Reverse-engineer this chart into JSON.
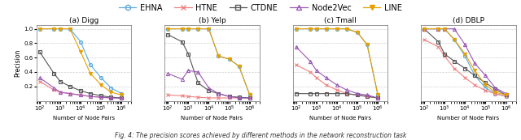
{
  "legend": {
    "EHNA": {
      "color": "#5aabdb",
      "marker": "o",
      "linestyle": "-",
      "mfc": "none"
    },
    "HTNE": {
      "color": "#f08080",
      "marker": "x",
      "linestyle": "-",
      "mfc": "auto"
    },
    "CTDNE": {
      "color": "#555555",
      "marker": "s",
      "linestyle": "-",
      "mfc": "none"
    },
    "Node2Vec": {
      "color": "#9b59b6",
      "marker": "^",
      "linestyle": "-",
      "mfc": "none"
    },
    "LINE": {
      "color": "#e8a000",
      "marker": "v",
      "linestyle": "-",
      "mfc": "auto"
    }
  },
  "methods": [
    "EHNA",
    "HTNE",
    "CTDNE",
    "Node2Vec",
    "LINE"
  ],
  "subplots": [
    {
      "title": "(a) Digg",
      "x": [
        100,
        500,
        1000,
        3000,
        10000,
        30000,
        100000,
        300000,
        1000000
      ],
      "EHNA": [
        1.0,
        1.0,
        1.0,
        1.0,
        0.82,
        0.5,
        0.32,
        0.18,
        0.1
      ],
      "HTNE": [
        0.27,
        0.15,
        0.12,
        0.1,
        0.08,
        0.06,
        0.05,
        0.04,
        0.04
      ],
      "CTDNE": [
        0.68,
        0.38,
        0.27,
        0.2,
        0.14,
        0.1,
        0.07,
        0.05,
        0.04
      ],
      "Node2Vec": [
        0.32,
        0.18,
        0.12,
        0.1,
        0.08,
        0.06,
        0.05,
        0.04,
        0.04
      ],
      "LINE": [
        1.0,
        1.0,
        1.0,
        1.0,
        0.68,
        0.38,
        0.22,
        0.12,
        0.08
      ]
    },
    {
      "title": "(b) Yelp",
      "x": [
        100,
        500,
        1000,
        3000,
        10000,
        30000,
        100000,
        300000,
        1000000
      ],
      "EHNA": [
        1.0,
        1.0,
        1.0,
        1.0,
        1.0,
        0.62,
        0.58,
        0.48,
        0.08
      ],
      "HTNE": [
        0.08,
        0.07,
        0.06,
        0.05,
        0.04,
        0.04,
        0.04,
        0.04,
        0.04
      ],
      "CTDNE": [
        0.92,
        0.82,
        0.65,
        0.25,
        0.14,
        0.1,
        0.06,
        0.05,
        0.04
      ],
      "Node2Vec": [
        0.38,
        0.3,
        0.42,
        0.4,
        0.18,
        0.1,
        0.06,
        0.04,
        0.04
      ],
      "LINE": [
        1.0,
        1.0,
        1.0,
        1.0,
        1.0,
        0.62,
        0.58,
        0.48,
        0.08
      ]
    },
    {
      "title": "(c) Tmall",
      "x": [
        100,
        500,
        1000,
        3000,
        10000,
        30000,
        100000,
        300000,
        1000000
      ],
      "EHNA": [
        1.0,
        1.0,
        1.0,
        1.0,
        1.0,
        1.0,
        0.95,
        0.78,
        0.08
      ],
      "HTNE": [
        0.5,
        0.4,
        0.32,
        0.22,
        0.15,
        0.1,
        0.08,
        0.06,
        0.04
      ],
      "CTDNE": [
        0.1,
        0.1,
        0.1,
        0.1,
        0.1,
        0.1,
        0.08,
        0.06,
        0.04
      ],
      "Node2Vec": [
        0.75,
        0.55,
        0.42,
        0.32,
        0.22,
        0.15,
        0.1,
        0.08,
        0.04
      ],
      "LINE": [
        1.0,
        1.0,
        1.0,
        1.0,
        1.0,
        1.0,
        0.95,
        0.78,
        0.08
      ]
    },
    {
      "title": "(d) DBLP",
      "x": [
        100,
        500,
        1000,
        3000,
        10000,
        30000,
        100000,
        300000,
        1000000
      ],
      "EHNA": [
        1.0,
        1.0,
        1.0,
        0.85,
        0.62,
        0.35,
        0.18,
        0.1,
        0.06
      ],
      "HTNE": [
        0.85,
        0.75,
        0.62,
        0.45,
        0.32,
        0.22,
        0.14,
        0.1,
        0.06
      ],
      "CTDNE": [
        1.0,
        0.82,
        0.65,
        0.55,
        0.45,
        0.35,
        0.25,
        0.16,
        0.08
      ],
      "Node2Vec": [
        1.0,
        1.0,
        1.0,
        1.0,
        0.78,
        0.52,
        0.35,
        0.18,
        0.1
      ],
      "LINE": [
        1.0,
        1.0,
        1.0,
        0.85,
        0.65,
        0.42,
        0.22,
        0.12,
        0.08
      ]
    }
  ],
  "xlabel": "Number of Node Pairs",
  "ylabel": "Precision",
  "ylim": [
    0,
    1.05
  ],
  "yticks": [
    0.2,
    0.4,
    0.6,
    0.8,
    1.0
  ],
  "fig_caption": "Fig. 4: The precision scores achieved by different methods in the network reconstruction task",
  "background_color": "#ffffff",
  "grid_color": "#cccccc"
}
